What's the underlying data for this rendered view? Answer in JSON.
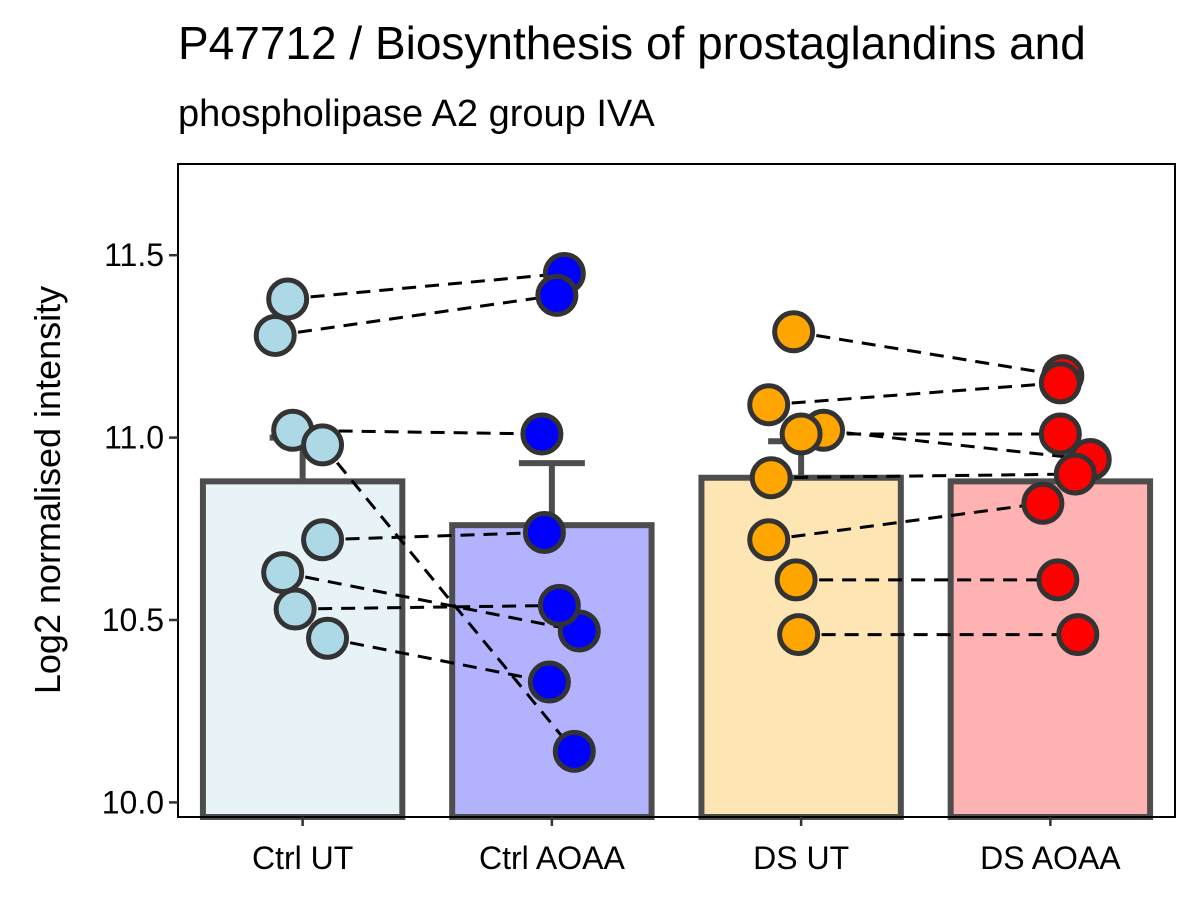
{
  "chart_data": {
    "type": "bar",
    "title": "P47712 / Biosynthesis of prostaglandins and",
    "subtitle": "phospholipase A2 group IVA",
    "xlabel": "",
    "ylabel": "Log2 normalised intensity",
    "ylim": [
      9.96,
      11.75
    ],
    "yticks": [
      10.0,
      10.5,
      11.0,
      11.5
    ],
    "ytick_labels": [
      "10.0",
      "10.5",
      "11.0",
      "11.5"
    ],
    "categories": [
      "Ctrl UT",
      "Ctrl AOAA",
      "DS UT",
      "DS AOAA"
    ],
    "bars": [
      {
        "name": "Ctrl UT",
        "mean": 10.88,
        "error_upper": 11.0,
        "fill": "#e8f3f8",
        "point_color": "#add8e6"
      },
      {
        "name": "Ctrl AOAA",
        "mean": 10.76,
        "error_upper": 10.93,
        "fill": "#b2b2ff",
        "point_color": "#0000ff"
      },
      {
        "name": "DS UT",
        "mean": 10.89,
        "error_upper": 10.99,
        "fill": "#fde5b4",
        "point_color": "#ffa500"
      },
      {
        "name": "DS AOAA",
        "mean": 10.88,
        "error_upper": 10.88,
        "fill": "#ffb2b2",
        "point_color": "#ff0000"
      }
    ],
    "pairs": [
      {
        "from": {
          "group": "Ctrl UT",
          "x": -0.06,
          "y": 11.38
        },
        "to": {
          "group": "Ctrl AOAA",
          "x": 0.05,
          "y": 11.45
        }
      },
      {
        "from": {
          "group": "Ctrl UT",
          "x": -0.11,
          "y": 11.28
        },
        "to": {
          "group": "Ctrl AOAA",
          "x": 0.02,
          "y": 11.39
        }
      },
      {
        "from": {
          "group": "Ctrl UT",
          "x": -0.04,
          "y": 11.02
        },
        "to": {
          "group": "Ctrl AOAA",
          "x": -0.04,
          "y": 11.01
        }
      },
      {
        "from": {
          "group": "Ctrl UT",
          "x": 0.08,
          "y": 10.98
        },
        "to": {
          "group": "Ctrl AOAA",
          "x": 0.09,
          "y": 10.14
        }
      },
      {
        "from": {
          "group": "Ctrl UT",
          "x": 0.08,
          "y": 10.72
        },
        "to": {
          "group": "Ctrl AOAA",
          "x": -0.03,
          "y": 10.74
        }
      },
      {
        "from": {
          "group": "Ctrl UT",
          "x": -0.08,
          "y": 10.63
        },
        "to": {
          "group": "Ctrl AOAA",
          "x": 0.11,
          "y": 10.47
        }
      },
      {
        "from": {
          "group": "Ctrl UT",
          "x": -0.03,
          "y": 10.53
        },
        "to": {
          "group": "Ctrl AOAA",
          "x": 0.03,
          "y": 10.54
        }
      },
      {
        "from": {
          "group": "Ctrl UT",
          "x": 0.1,
          "y": 10.45
        },
        "to": {
          "group": "Ctrl AOAA",
          "x": -0.01,
          "y": 10.33
        }
      },
      {
        "from": {
          "group": "DS UT",
          "x": -0.03,
          "y": 11.29
        },
        "to": {
          "group": "DS AOAA",
          "x": 0.05,
          "y": 11.17
        }
      },
      {
        "from": {
          "group": "DS UT",
          "x": -0.13,
          "y": 11.09
        },
        "to": {
          "group": "DS AOAA",
          "x": 0.04,
          "y": 11.15
        }
      },
      {
        "from": {
          "group": "DS UT",
          "x": 0.09,
          "y": 11.02
        },
        "to": {
          "group": "DS AOAA",
          "x": 0.16,
          "y": 10.94
        }
      },
      {
        "from": {
          "group": "DS UT",
          "x": 0.0,
          "y": 11.01
        },
        "to": {
          "group": "DS AOAA",
          "x": 0.04,
          "y": 11.01
        }
      },
      {
        "from": {
          "group": "DS UT",
          "x": -0.12,
          "y": 10.89
        },
        "to": {
          "group": "DS AOAA",
          "x": 0.1,
          "y": 10.9
        }
      },
      {
        "from": {
          "group": "DS UT",
          "x": -0.13,
          "y": 10.72
        },
        "to": {
          "group": "DS AOAA",
          "x": -0.03,
          "y": 10.82
        }
      },
      {
        "from": {
          "group": "DS UT",
          "x": -0.02,
          "y": 10.61
        },
        "to": {
          "group": "DS AOAA",
          "x": 0.03,
          "y": 10.61
        }
      },
      {
        "from": {
          "group": "DS UT",
          "x": -0.01,
          "y": 10.46
        },
        "to": {
          "group": "DS AOAA",
          "x": 0.11,
          "y": 10.46
        }
      }
    ]
  }
}
